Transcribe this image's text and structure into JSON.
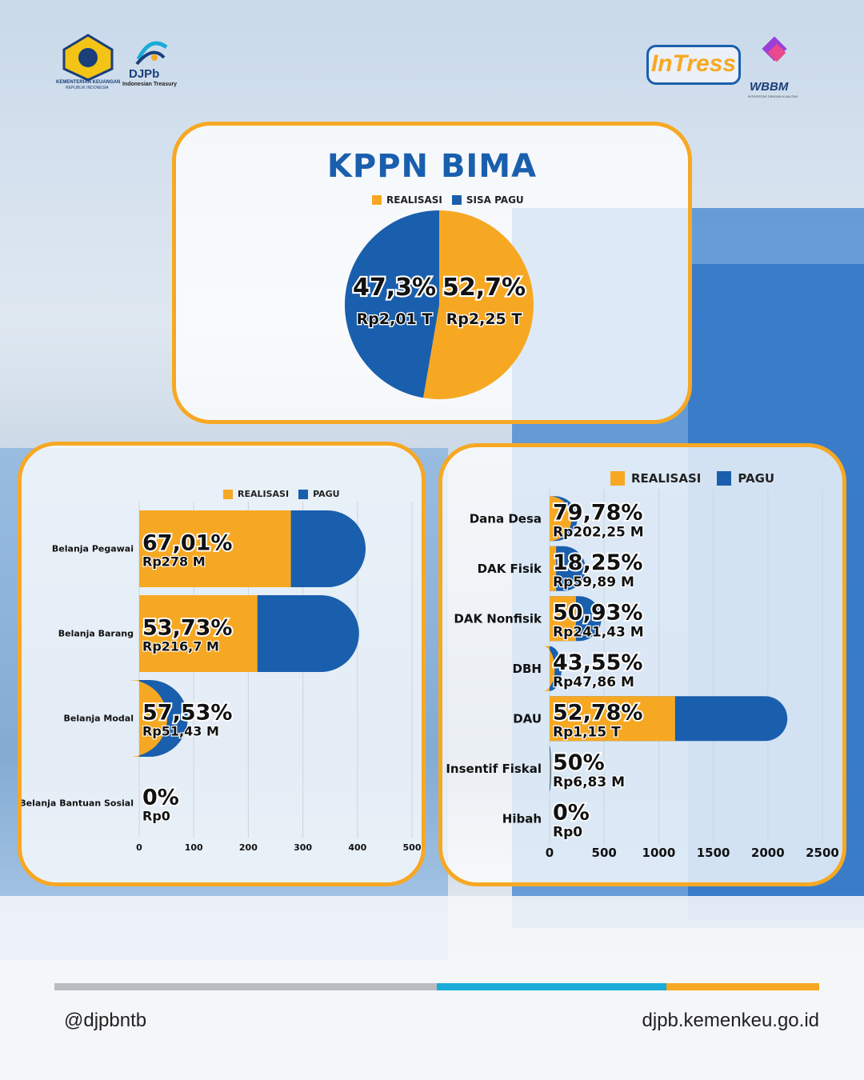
{
  "header": {
    "kemenkeu_caption": "KEMENTERIAN KEUANGAN",
    "kemenkeu_sub": "REPUBLIK INDONESIA",
    "djpb_name": "DJPb",
    "djpb_sub": "Indonesian Treasury",
    "intress_logo": "InTress",
    "wbbm_logo": "WBBM",
    "wbbm_sub": "INTEGRITAS DENGAN KUALITAS"
  },
  "colors": {
    "realisasi": "#f7a823",
    "pagu": "#1a5fad",
    "accent_cyan": "#1aabd8",
    "border": "#f7a823"
  },
  "footer": {
    "handle": "@djpbntb",
    "website": "djpb.kemenkeu.go.id"
  },
  "chart_data": [
    {
      "type": "pie",
      "title": "KPPN BIMA",
      "legend": [
        "REALISASI",
        "SISA PAGU"
      ],
      "slices": [
        {
          "name": "REALISASI",
          "percent": 52.7,
          "percent_label": "52,7%",
          "value_label": "Rp2,25 T"
        },
        {
          "name": "SISA PAGU",
          "percent": 47.3,
          "percent_label": "47,3%",
          "value_label": "Rp2,01 T"
        }
      ]
    },
    {
      "type": "bar",
      "orientation": "horizontal",
      "legend": [
        "REALISASI",
        "PAGU"
      ],
      "legend_placement": "top-right",
      "xlim": [
        0,
        500
      ],
      "xticks": [
        "0",
        "100",
        "200",
        "300",
        "400",
        "500"
      ],
      "categories": [
        "Belanja Pegawai",
        "Belanja Barang",
        "Belanja Modal",
        "Belanja Bantuan Sosial"
      ],
      "series": [
        {
          "name": "REALISASI",
          "values": [
            278,
            216.7,
            51.43,
            0
          ]
        },
        {
          "name": "PAGU",
          "values": [
            415,
            403,
            89,
            0
          ]
        }
      ],
      "percent_labels": [
        "67,01%",
        "53,73%",
        "57,53%",
        "0%"
      ],
      "value_labels": [
        "Rp278 M",
        "Rp216,7 M",
        "Rp51,43 M",
        "Rp0"
      ]
    },
    {
      "type": "bar",
      "orientation": "horizontal",
      "legend": [
        "REALISASI",
        "PAGU"
      ],
      "legend_placement": "top",
      "xlim": [
        0,
        2500
      ],
      "xticks": [
        "0",
        "500",
        "1000",
        "1500",
        "2000",
        "2500"
      ],
      "categories": [
        "Dana Desa",
        "DAK Fisik",
        "DAK Nonfisik",
        "DBH",
        "DAU",
        "Insentif Fiskal",
        "Hibah"
      ],
      "series": [
        {
          "name": "REALISASI",
          "values": [
            202.25,
            59.89,
            241.43,
            47.86,
            1150,
            6.83,
            0
          ]
        },
        {
          "name": "PAGU",
          "values": [
            253.5,
            328.2,
            474,
            109.9,
            2179,
            13.66,
            0
          ]
        }
      ],
      "percent_labels": [
        "79,78%",
        "18,25%",
        "50,93%",
        "43,55%",
        "52,78%",
        "50%",
        "0%"
      ],
      "value_labels": [
        "Rp202,25 M",
        "Rp59,89 M",
        "Rp241,43 M",
        "Rp47,86 M",
        "Rp1,15 T",
        "Rp6,83 M",
        "Rp0"
      ]
    }
  ]
}
